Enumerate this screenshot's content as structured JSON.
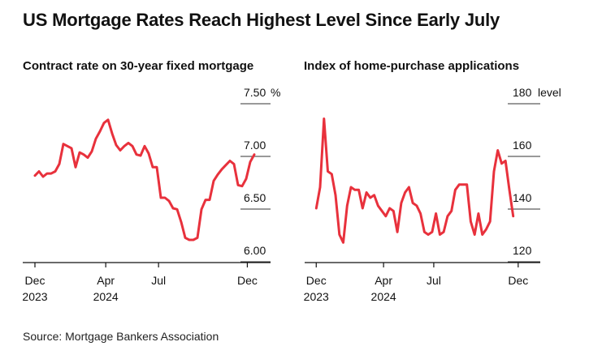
{
  "title": "US Mortgage Rates Reach Highest Level Since Early July",
  "source": "Source: Mortgage Bankers Association",
  "line_color": "#e8313c",
  "chart_data": [
    {
      "type": "line",
      "title": "Contract rate on 30-year fixed mortgage",
      "unit": "%",
      "ylim": [
        6.0,
        7.5
      ],
      "yticks": [
        {
          "value": 7.5,
          "label": "7.50"
        },
        {
          "value": 7.0,
          "label": "7.00"
        },
        {
          "value": 6.5,
          "label": "6.50"
        },
        {
          "value": 6.0,
          "label": "6.00"
        }
      ],
      "xlim": [
        "2023-11-10",
        "2025-01-10"
      ],
      "xticks": [
        {
          "date": "2023-12-01",
          "line1": "Dec",
          "line2": "2023"
        },
        {
          "date": "2024-04-01",
          "line1": "Apr",
          "line2": "2024"
        },
        {
          "date": "2024-07-01",
          "line1": "Jul",
          "line2": ""
        },
        {
          "date": "2024-12-01",
          "line1": "Dec",
          "line2": ""
        }
      ],
      "grid": true,
      "points": [
        [
          "2023-12-01",
          6.71
        ],
        [
          "2023-12-08",
          6.75
        ],
        [
          "2023-12-15",
          6.7
        ],
        [
          "2023-12-22",
          6.73
        ],
        [
          "2023-12-29",
          6.73
        ],
        [
          "2024-01-05",
          6.75
        ],
        [
          "2024-01-12",
          6.82
        ],
        [
          "2024-01-19",
          7.01
        ],
        [
          "2024-01-26",
          6.99
        ],
        [
          "2024-02-02",
          6.97
        ],
        [
          "2024-02-09",
          6.79
        ],
        [
          "2024-02-16",
          6.93
        ],
        [
          "2024-02-23",
          6.91
        ],
        [
          "2024-03-01",
          6.88
        ],
        [
          "2024-03-08",
          6.94
        ],
        [
          "2024-03-15",
          7.06
        ],
        [
          "2024-03-22",
          7.13
        ],
        [
          "2024-03-29",
          7.21
        ],
        [
          "2024-04-05",
          7.24
        ],
        [
          "2024-04-12",
          7.11
        ],
        [
          "2024-04-19",
          7.0
        ],
        [
          "2024-04-26",
          6.95
        ],
        [
          "2024-05-03",
          6.99
        ],
        [
          "2024-05-10",
          7.02
        ],
        [
          "2024-05-17",
          6.99
        ],
        [
          "2024-05-24",
          6.91
        ],
        [
          "2024-05-31",
          6.9
        ],
        [
          "2024-06-07",
          6.99
        ],
        [
          "2024-06-14",
          6.92
        ],
        [
          "2024-06-21",
          6.79
        ],
        [
          "2024-06-28",
          6.79
        ],
        [
          "2024-07-05",
          6.5
        ],
        [
          "2024-07-12",
          6.5
        ],
        [
          "2024-07-19",
          6.47
        ],
        [
          "2024-07-26",
          6.4
        ],
        [
          "2024-08-02",
          6.39
        ],
        [
          "2024-08-09",
          6.27
        ],
        [
          "2024-08-16",
          6.12
        ],
        [
          "2024-08-23",
          6.1
        ],
        [
          "2024-08-30",
          6.1
        ],
        [
          "2024-09-06",
          6.12
        ],
        [
          "2024-09-13",
          6.39
        ],
        [
          "2024-09-20",
          6.48
        ],
        [
          "2024-09-27",
          6.48
        ],
        [
          "2024-10-04",
          6.66
        ],
        [
          "2024-10-11",
          6.72
        ],
        [
          "2024-10-18",
          6.77
        ],
        [
          "2024-10-25",
          6.81
        ],
        [
          "2024-11-01",
          6.85
        ],
        [
          "2024-11-08",
          6.82
        ],
        [
          "2024-11-15",
          6.62
        ],
        [
          "2024-11-22",
          6.61
        ],
        [
          "2024-11-29",
          6.68
        ],
        [
          "2024-12-06",
          6.84
        ],
        [
          "2024-12-13",
          6.91
        ]
      ]
    },
    {
      "type": "line",
      "title": "Index of home-purchase applications",
      "unit": "level",
      "ylim": [
        120,
        180
      ],
      "yticks": [
        {
          "value": 180,
          "label": "180"
        },
        {
          "value": 160,
          "label": "160"
        },
        {
          "value": 140,
          "label": "140"
        },
        {
          "value": 120,
          "label": "120"
        }
      ],
      "xlim": [
        "2023-11-10",
        "2025-01-10"
      ],
      "xticks": [
        {
          "date": "2023-12-01",
          "line1": "Dec",
          "line2": "2023"
        },
        {
          "date": "2024-04-01",
          "line1": "Apr",
          "line2": "2024"
        },
        {
          "date": "2024-07-01",
          "line1": "Jul",
          "line2": ""
        },
        {
          "date": "2024-12-01",
          "line1": "Dec",
          "line2": ""
        }
      ],
      "grid": true,
      "points": [
        [
          "2023-12-01",
          136
        ],
        [
          "2023-12-08",
          144
        ],
        [
          "2023-12-15",
          170
        ],
        [
          "2023-12-22",
          150
        ],
        [
          "2023-12-29",
          149
        ],
        [
          "2024-01-05",
          141
        ],
        [
          "2024-01-12",
          126
        ],
        [
          "2024-01-19",
          123
        ],
        [
          "2024-01-26",
          137
        ],
        [
          "2024-02-02",
          144
        ],
        [
          "2024-02-09",
          143
        ],
        [
          "2024-02-16",
          143
        ],
        [
          "2024-02-23",
          136
        ],
        [
          "2024-03-01",
          142
        ],
        [
          "2024-03-08",
          140
        ],
        [
          "2024-03-15",
          141
        ],
        [
          "2024-03-22",
          137
        ],
        [
          "2024-03-29",
          135
        ],
        [
          "2024-04-05",
          133
        ],
        [
          "2024-04-12",
          136
        ],
        [
          "2024-04-19",
          135
        ],
        [
          "2024-04-26",
          127
        ],
        [
          "2024-05-03",
          138
        ],
        [
          "2024-05-10",
          142
        ],
        [
          "2024-05-17",
          144
        ],
        [
          "2024-05-24",
          138
        ],
        [
          "2024-05-31",
          137
        ],
        [
          "2024-06-07",
          134
        ],
        [
          "2024-06-14",
          127
        ],
        [
          "2024-06-21",
          126
        ],
        [
          "2024-06-28",
          127
        ],
        [
          "2024-07-05",
          134
        ],
        [
          "2024-07-12",
          126
        ],
        [
          "2024-07-19",
          127
        ],
        [
          "2024-07-26",
          133
        ],
        [
          "2024-08-02",
          135
        ],
        [
          "2024-08-09",
          143
        ],
        [
          "2024-08-16",
          145
        ],
        [
          "2024-08-23",
          145
        ],
        [
          "2024-08-30",
          145
        ],
        [
          "2024-09-06",
          131
        ],
        [
          "2024-09-13",
          126
        ],
        [
          "2024-09-20",
          134
        ],
        [
          "2024-09-27",
          126
        ],
        [
          "2024-10-04",
          128
        ],
        [
          "2024-10-11",
          131
        ],
        [
          "2024-10-18",
          150
        ],
        [
          "2024-10-25",
          158
        ],
        [
          "2024-11-01",
          153
        ],
        [
          "2024-11-08",
          154
        ],
        [
          "2024-11-15",
          143
        ],
        [
          "2024-11-22",
          133
        ]
      ]
    }
  ]
}
